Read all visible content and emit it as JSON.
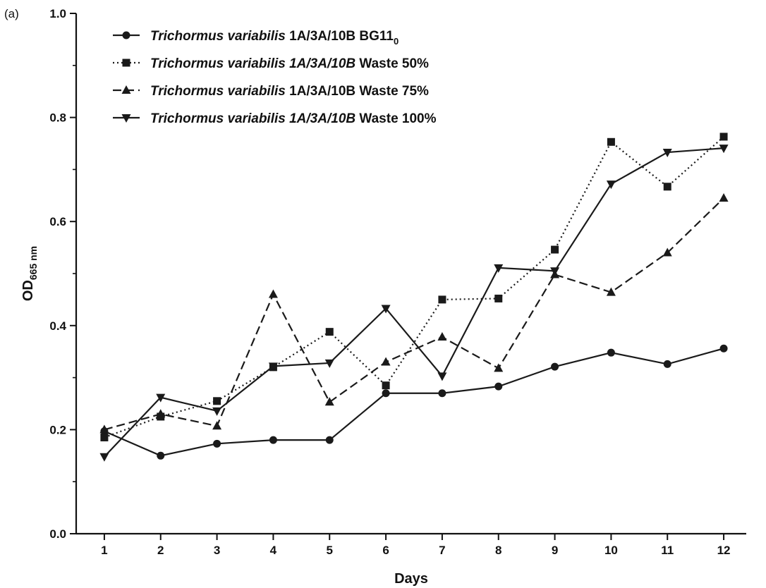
{
  "chart_data": {
    "type": "line",
    "panel_label": "(a)",
    "title": "",
    "xlabel": "Days",
    "ylabel": {
      "main": "OD",
      "sub": "665 nm"
    },
    "x": [
      1,
      2,
      3,
      4,
      5,
      6,
      7,
      8,
      9,
      10,
      11,
      12
    ],
    "x_tick_labels": [
      "1",
      "2",
      "3",
      "4",
      "5",
      "6",
      "7",
      "8",
      "9",
      "10",
      "11",
      "12"
    ],
    "xlim": [
      0.5,
      12.4
    ],
    "ylim": [
      0.0,
      1.0
    ],
    "y_ticks": [
      0.0,
      0.2,
      0.4,
      0.6,
      0.8,
      1.0
    ],
    "y_tick_labels": [
      "0.0",
      "0.2",
      "0.4",
      "0.6",
      "0.8",
      "1.0"
    ],
    "grid": false,
    "legend_position": "top-left",
    "series": [
      {
        "legend": {
          "italic": "Trichormus variabilis",
          "normal": " 1A/3A/10B BG11",
          "sub": "0"
        },
        "marker": "circle",
        "line_style": "solid",
        "color": "#1a1a1a",
        "values": [
          0.197,
          0.15,
          0.173,
          0.18,
          0.18,
          0.27,
          0.27,
          0.283,
          0.321,
          0.348,
          0.326,
          0.356
        ]
      },
      {
        "legend": {
          "italic": "Trichormus variabilis 1A/3A/10B",
          "normal": " Waste 50%",
          "sub": ""
        },
        "marker": "square",
        "line_style": "dotted",
        "color": "#1a1a1a",
        "values": [
          0.185,
          0.225,
          0.255,
          0.32,
          0.388,
          0.285,
          0.45,
          0.452,
          0.546,
          0.753,
          0.667,
          0.763
        ]
      },
      {
        "legend": {
          "italic": "Trichormus variabilis",
          "normal": " 1A/3A/10B Waste 75%",
          "sub": ""
        },
        "marker": "triangle-up",
        "line_style": "dashed",
        "color": "#1a1a1a",
        "values": [
          0.2,
          0.23,
          0.207,
          0.46,
          0.253,
          0.33,
          0.378,
          0.318,
          0.498,
          0.464,
          0.54,
          0.645
        ]
      },
      {
        "legend": {
          "italic": "Trichormus variabilis 1A/3A/10B",
          "normal": " Waste 100%",
          "sub": ""
        },
        "marker": "triangle-down",
        "line_style": "solid",
        "color": "#1a1a1a",
        "values": [
          0.148,
          0.262,
          0.236,
          0.322,
          0.328,
          0.433,
          0.303,
          0.511,
          0.505,
          0.672,
          0.733,
          0.741
        ]
      }
    ]
  }
}
